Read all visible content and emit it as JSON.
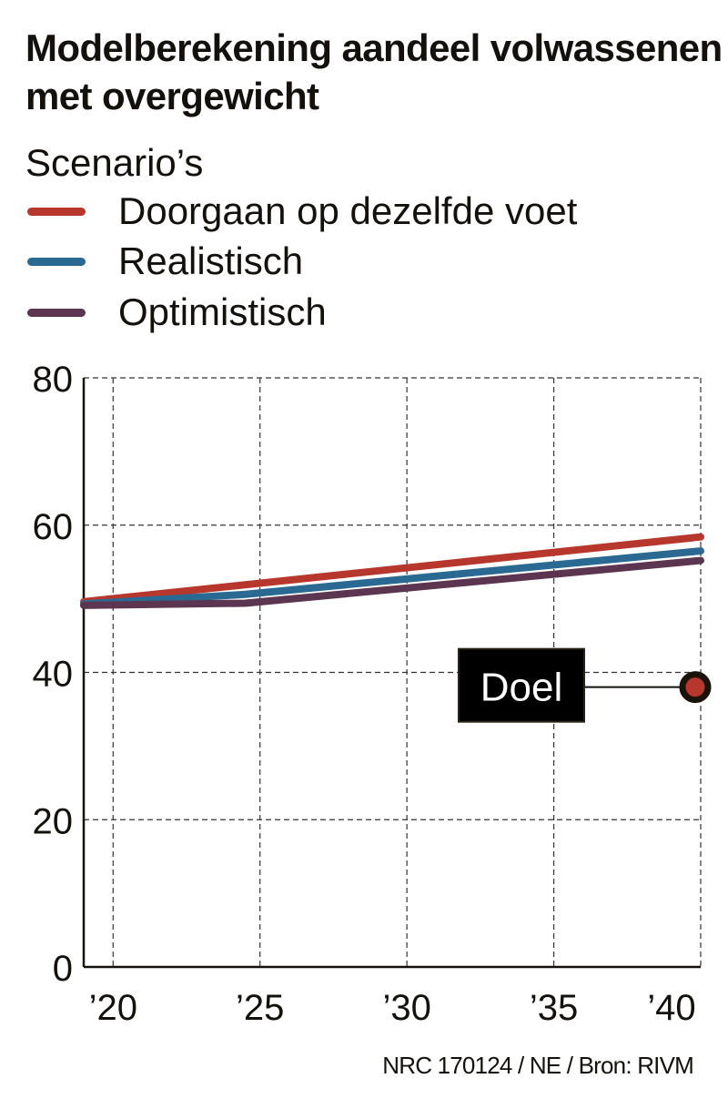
{
  "chart_data": {
    "type": "line",
    "title": "Modelberekening aandeel volwassenen met overgewicht",
    "legend_title": "Scenario’s",
    "legend_placement": "top-left",
    "grid": true,
    "xlim": [
      2019,
      2040
    ],
    "ylim": [
      0,
      80
    ],
    "x_ticks": [
      2020,
      2025,
      2030,
      2035,
      2040
    ],
    "x_tick_labels": [
      "’20",
      "’25",
      "’30",
      "’35",
      "’40"
    ],
    "y_ticks": [
      0,
      20,
      40,
      60,
      80
    ],
    "y_tick_labels": [
      "0",
      "20",
      "40",
      "60",
      "80"
    ],
    "series": [
      {
        "name": "Doorgaan op dezelfde voet",
        "color": "#b8372c",
        "x": [
          2019,
          2040
        ],
        "y": [
          49.6,
          58.4
        ]
      },
      {
        "name": "Realistisch",
        "color": "#2a6a92",
        "x": [
          2019,
          2024.5,
          2040
        ],
        "y": [
          49.3,
          50.6,
          56.5
        ]
      },
      {
        "name": "Optimistisch",
        "color": "#5c3650",
        "x": [
          2019,
          2024.5,
          2040
        ],
        "y": [
          49.1,
          49.4,
          55.2
        ]
      }
    ],
    "annotations": [
      {
        "label": "Doel",
        "x": 2040,
        "y": 38,
        "marker_color": "#b8372c"
      }
    ]
  },
  "source": "NRC 170124 / NE / Bron: RIVM"
}
